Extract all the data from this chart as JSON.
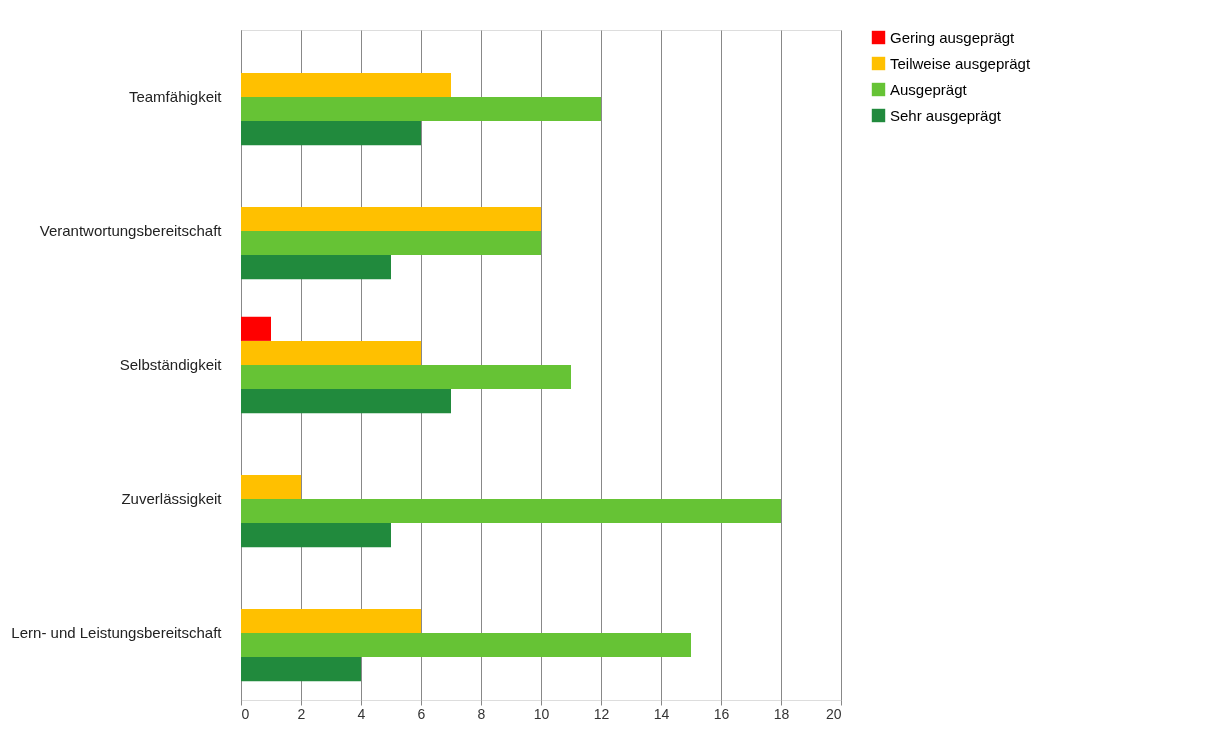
{
  "chart_data": {
    "type": "bar",
    "orientation": "horizontal",
    "categories": [
      "Teamfähigkeit",
      "Verantwortungsbereitschaft",
      "Selbständigkeit",
      "Zuverlässigkeit",
      "Lern- und Leistungsbereitschaft"
    ],
    "series": [
      {
        "name": "Gering ausgeprägt",
        "color": "#ff0000",
        "values": [
          null,
          null,
          1,
          null,
          null
        ]
      },
      {
        "name": "Teilweise ausgeprägt",
        "color": "#ffc000",
        "values": [
          7,
          10,
          6,
          2,
          6
        ]
      },
      {
        "name": "Ausgeprägt",
        "color": "#66c335",
        "values": [
          12,
          10,
          11,
          18,
          15
        ]
      },
      {
        "name": "Sehr ausgeprägt",
        "color": "#218a3d",
        "values": [
          6,
          5,
          7,
          5,
          4
        ]
      }
    ],
    "xlim": [
      0,
      20
    ],
    "xticks": [
      0,
      2,
      4,
      6,
      8,
      10,
      12,
      14,
      16,
      18,
      20
    ],
    "grid": "x",
    "legend": "right"
  }
}
